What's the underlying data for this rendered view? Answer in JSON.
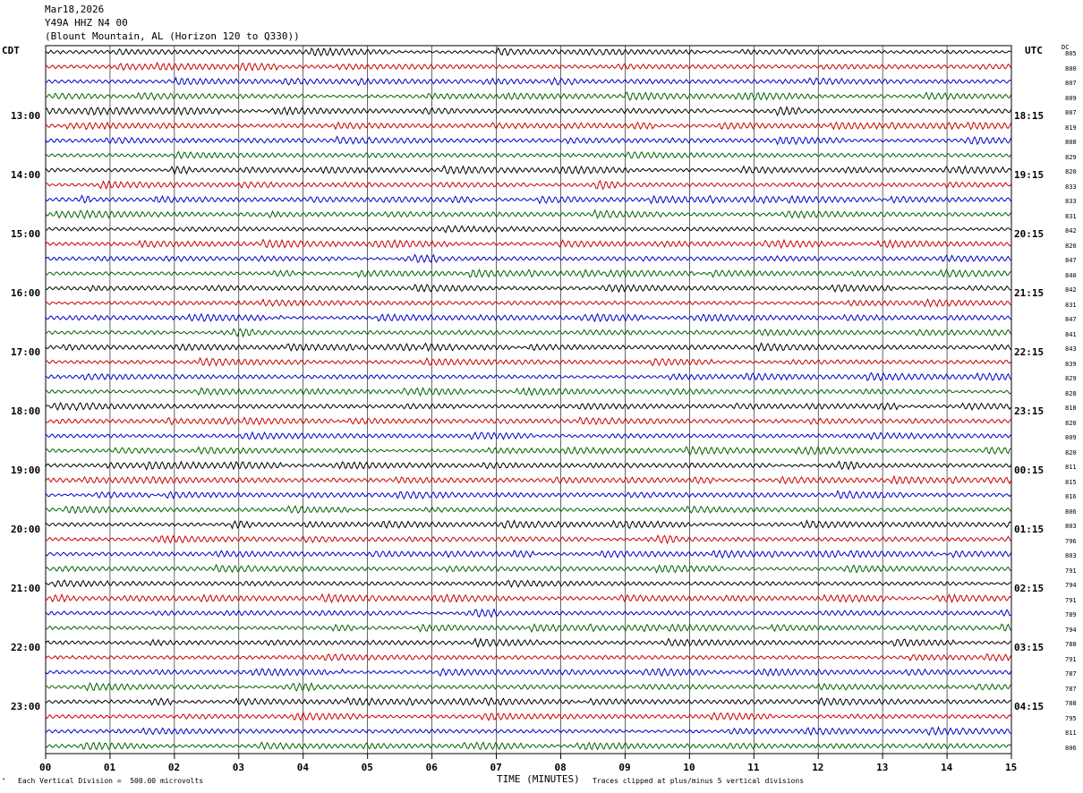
{
  "header": {
    "date": "Mar18,2026",
    "station": "Y49A HHZ N4 00",
    "location": "(Blount Mountain, AL (Horizon 120 to Q330))"
  },
  "left_timezone": "CDT",
  "right_timezone": "UTC",
  "dc_label": "DC",
  "footer": {
    "scale_note": "Each Vertical Division =  500.00 microvolts",
    "xlabel": "TIME (MINUTES)",
    "clip_note": "Traces clipped at plus/minus 5 vertical divisions"
  },
  "colors": {
    "trace_cycle": [
      "#000000",
      "#cc0000",
      "#0000cc",
      "#006400"
    ],
    "grid": "#000000"
  },
  "chart_data": {
    "type": "line",
    "xlabel": "TIME (MINUTES)",
    "xlim": [
      0,
      15
    ],
    "x_ticks": [
      "00",
      "01",
      "02",
      "03",
      "04",
      "05",
      "06",
      "07",
      "08",
      "09",
      "10",
      "11",
      "12",
      "13",
      "14",
      "15"
    ],
    "left_hour_labels": [
      "13:00",
      "14:00",
      "15:00",
      "16:00",
      "17:00",
      "18:00",
      "19:00",
      "20:00",
      "21:00",
      "22:00",
      "23:00"
    ],
    "right_hour_labels": [
      "18:15",
      "19:15",
      "20:15",
      "21:15",
      "22:15",
      "23:15",
      "00:15",
      "01:15",
      "02:15",
      "03:15",
      "04:15"
    ],
    "dc_offsets": [
      805,
      800,
      807,
      809,
      807,
      819,
      808,
      829,
      820,
      833,
      833,
      831,
      842,
      820,
      847,
      840,
      842,
      831,
      847,
      841,
      843,
      839,
      829,
      828,
      818,
      820,
      809,
      820,
      811,
      815,
      816,
      806,
      803,
      796,
      803,
      791,
      794,
      791,
      789,
      794,
      788,
      791,
      787,
      787,
      788,
      795,
      811,
      806
    ],
    "trace_count": 48
  }
}
